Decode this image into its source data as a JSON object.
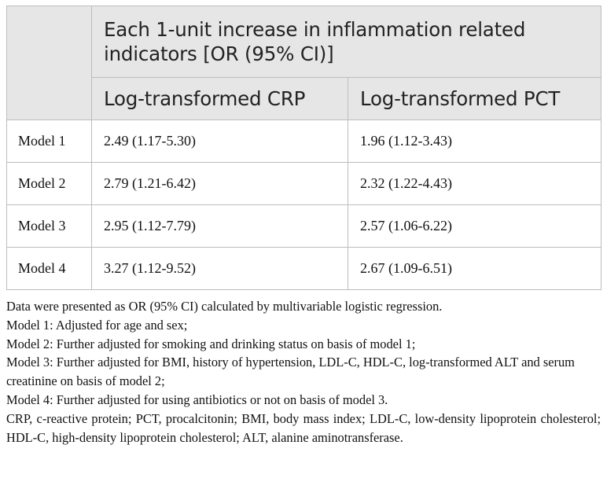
{
  "table": {
    "header_top": "Each 1-unit increase in inflammation related indicators [OR (95% CI)]",
    "columns": [
      "Log-transformed CRP",
      "Log-transformed PCT"
    ],
    "rows": [
      {
        "model": "Model 1",
        "crp": "2.49 (1.17-5.30)",
        "pct": "1.96 (1.12-3.43)"
      },
      {
        "model": "Model 2",
        "crp": "2.79 (1.21-6.42)",
        "pct": "2.32 (1.22-4.43)"
      },
      {
        "model": "Model 3",
        "crp": "2.95 (1.12-7.79)",
        "pct": "2.57 (1.06-6.22)"
      },
      {
        "model": "Model 4",
        "crp": "3.27 (1.12-9.52)",
        "pct": "2.67 (1.09-6.51)"
      }
    ]
  },
  "footnotes": {
    "intro": "Data were presented as OR (95% CI) calculated by multivariable logistic regression.",
    "model1": "Model 1: Adjusted for age and sex;",
    "model2": "Model 2: Further adjusted for smoking and drinking status on basis of model 1;",
    "model3": "Model 3: Further adjusted for BMI, history of hypertension, LDL-C, HDL-C, log-transformed ALT and serum creatinine on basis of model 2;",
    "model4": "Model 4: Further adjusted for using antibiotics or not on basis of model 3.",
    "abbrev": "CRP, c-reactive protein; PCT, procalcitonin; BMI, body mass index; LDL-C, low-density lipoprotein cholesterol; HDL-C, high-density lipoprotein cholesterol; ALT, alanine aminotransferase."
  }
}
